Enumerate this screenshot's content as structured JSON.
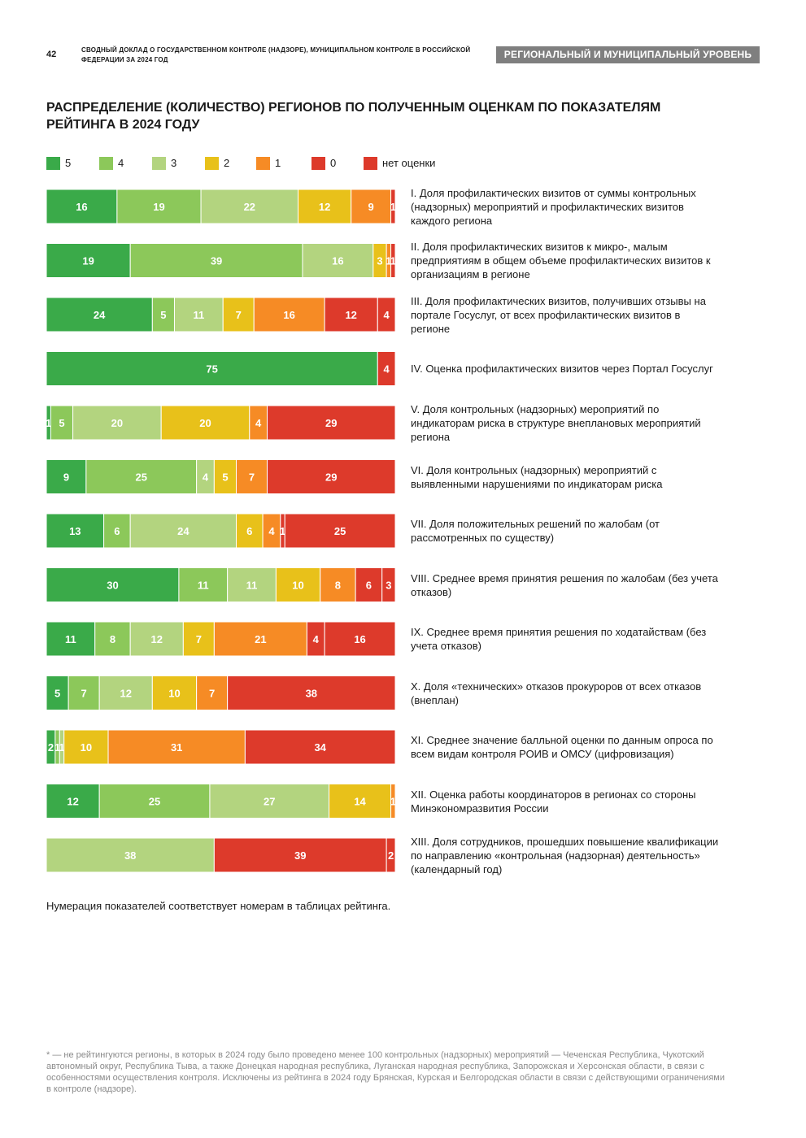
{
  "header": {
    "page_number": "42",
    "running_title": "СВОДНЫЙ ДОКЛАД О ГОСУДАРСТВЕННОМ КОНТРОЛЕ (НАДЗОРЕ), МУНИЦИПАЛЬНОМ КОНТРОЛЕ В РОССИЙСКОЙ ФЕДЕРАЦИИ ЗА 2024 ГОД",
    "section_badge": "РЕГИОНАЛЬНЫЙ И МУНИЦИПАЛЬНЫЙ УРОВЕНЬ"
  },
  "chart_data": {
    "type": "bar",
    "orientation": "horizontal",
    "stacked": true,
    "title": "РАСПРЕДЕЛЕНИЕ (КОЛИЧЕСТВО) РЕГИОНОВ ПО ПОЛУЧЕННЫМ ОЦЕНКАМ ПО ПОКАЗАТЕЛЯМ РЕЙТИНГА В 2024 ГОДУ",
    "legend_position": "top-left",
    "grid": false,
    "series": [
      {
        "name": "5",
        "color": "#3aaa49"
      },
      {
        "name": "4",
        "color": "#8cc85a"
      },
      {
        "name": "3",
        "color": "#b3d47f"
      },
      {
        "name": "2",
        "color": "#e8c11a"
      },
      {
        "name": "1",
        "color": "#f68b25"
      },
      {
        "name": "0",
        "color": "#dd3a2b"
      },
      {
        "name": "нет оценки",
        "color": "#dd3a2b"
      }
    ],
    "categories": [
      "I. Доля профилактических визитов от суммы контрольных (надзорных) мероприятий и профилактических визитов каждого региона",
      "II. Доля профилактических визитов к микро-, малым предприятиям в общем объеме профилактических визитов к организациям в регионе",
      "III. Доля профилактических визитов, получивших отзывы на портале Госуслуг, от всех профилактических визитов в регионе",
      "IV. Оценка профилактических визитов через Портал Госуслуг",
      "V. Доля контрольных (надзорных) мероприятий по индикаторам риска в структуре внеплановых мероприятий региона",
      "VI. Доля контрольных (надзорных) мероприятий с выявленными нарушениями по индикаторам риска",
      "VII. Доля положительных решений по жалобам (от рассмотренных по существу)",
      "VIII. Среднее время принятия решения по жалобам (без учета отказов)",
      "IX. Среднее время принятия решения по ходатайствам (без учета отказов)",
      "X. Доля «технических» отказов прокуроров от всех отказов (внеплан)",
      "XI. Среднее значение балльной оценки по данным опроса по всем видам контроля РОИВ и ОМСУ (цифровизация)",
      "XII. Оценка работы координаторов в регионах со стороны Минэкономразвития России",
      "XIII. Доля сотрудников, прошедших повышение квалификации по направлению «контрольная (надзорная) деятельность» (календарный год)"
    ],
    "rows": [
      [
        16,
        19,
        22,
        12,
        9,
        0,
        1
      ],
      [
        19,
        39,
        16,
        3,
        1,
        0,
        1
      ],
      [
        24,
        5,
        11,
        7,
        16,
        12,
        4
      ],
      [
        75,
        0,
        0,
        0,
        0,
        0,
        4
      ],
      [
        1,
        5,
        20,
        20,
        4,
        29,
        0
      ],
      [
        9,
        25,
        4,
        5,
        7,
        29,
        0
      ],
      [
        13,
        6,
        24,
        6,
        4,
        1,
        25
      ],
      [
        30,
        11,
        11,
        10,
        8,
        6,
        3
      ],
      [
        11,
        8,
        12,
        7,
        21,
        4,
        16
      ],
      [
        5,
        7,
        12,
        10,
        7,
        38,
        0
      ],
      [
        2,
        1,
        1,
        10,
        31,
        34,
        0
      ],
      [
        12,
        25,
        27,
        14,
        1,
        0,
        0
      ],
      [
        0,
        0,
        38,
        0,
        0,
        39,
        2
      ]
    ]
  },
  "notes": {
    "chart_note": "Нумерация показателей соответствует номерам в таблицах рейтинга.",
    "footnote": "* — не рейтингуются регионы, в которых в 2024 году было проведено менее 100 контрольных (надзорных) мероприятий — Чеченская Республика, Чукотский автономный округ, Республика Тыва, а также Донецкая народная республика, Луганская народная республика, Запорожская и Херсонская области, в связи с особенностями осуществления контроля. Исключены из рейтинга в 2024 году Брянская, Курская и Белгородская области в связи с действующими ограничениями в контроле (надзоре)."
  }
}
